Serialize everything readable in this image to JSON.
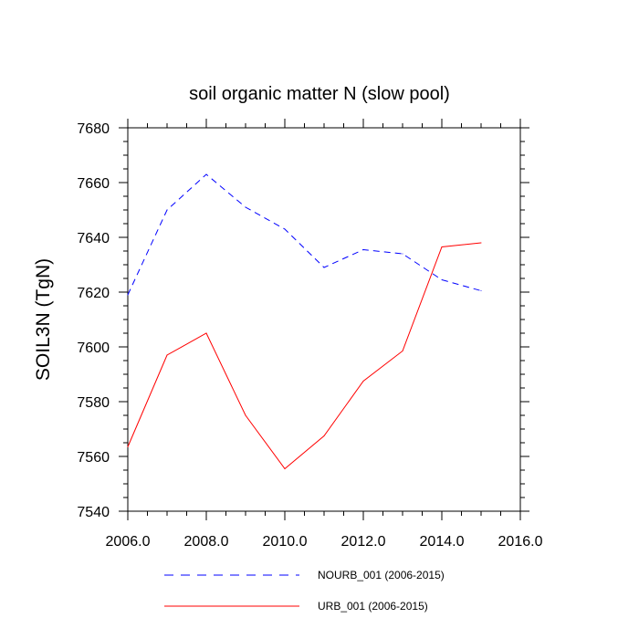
{
  "chart_data": {
    "type": "line",
    "title": "soil organic matter N (slow pool)",
    "xlabel": "",
    "ylabel": "SOIL3N  (TgN)",
    "xlim": [
      2006,
      2016
    ],
    "ylim": [
      7540,
      7680
    ],
    "x_ticks": [
      2006,
      2008,
      2010,
      2012,
      2014,
      2016
    ],
    "x_tick_labels": [
      "2006.0",
      "2008.0",
      "2010.0",
      "2012.0",
      "2014.0",
      "2016.0"
    ],
    "y_ticks": [
      7540,
      7560,
      7580,
      7600,
      7620,
      7640,
      7660,
      7680
    ],
    "y_tick_labels": [
      "7540",
      "7560",
      "7580",
      "7600",
      "7620",
      "7640",
      "7660",
      "7680"
    ],
    "x": [
      2006,
      2007,
      2008,
      2009,
      2010,
      2011,
      2012,
      2013,
      2014,
      2015
    ],
    "series": [
      {
        "name": "NOURB_001 (2006-2015)",
        "color": "#0000ff",
        "style": "dashed",
        "values": [
          7619,
          7650,
          7663,
          7651,
          7643,
          7629,
          7635.5,
          7634,
          7624.5,
          7620.5
        ]
      },
      {
        "name": "URB_001 (2006-2015)",
        "color": "#ff0000",
        "style": "solid",
        "values": [
          7563.5,
          7597,
          7605,
          7575,
          7555.5,
          7567.5,
          7587.5,
          7598.5,
          7636.5,
          7638
        ]
      }
    ],
    "legend": "bottom"
  }
}
